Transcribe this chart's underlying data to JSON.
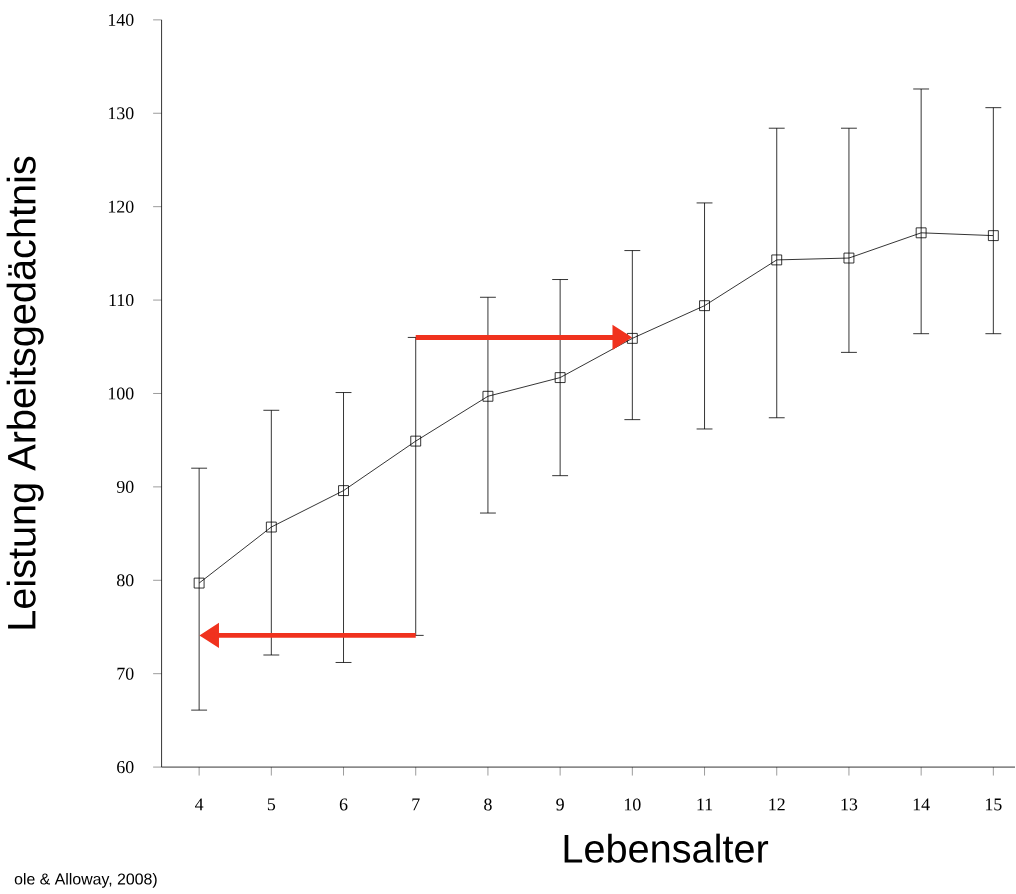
{
  "chart_data": {
    "type": "line",
    "xlabel": "Lebensalter",
    "ylabel": "Leistung Arbeitsgedächtnis",
    "categories": [
      "4",
      "5",
      "6",
      "7",
      "8",
      "9",
      "10",
      "11",
      "12",
      "13",
      "14",
      "15"
    ],
    "values": [
      79.7,
      85.7,
      89.6,
      94.9,
      99.7,
      101.7,
      105.9,
      109.4,
      114.3,
      114.5,
      117.2,
      116.9
    ],
    "errors": [
      [
        66.1,
        92.0
      ],
      [
        72.0,
        98.2
      ],
      [
        71.2,
        100.1
      ],
      [
        74.1,
        106.0
      ],
      [
        87.2,
        110.3
      ],
      [
        91.2,
        112.2
      ],
      [
        97.2,
        115.3
      ],
      [
        96.2,
        120.4
      ],
      [
        97.4,
        128.4
      ],
      [
        104.4,
        128.4
      ],
      [
        106.4,
        132.6
      ],
      [
        106.4,
        130.6
      ]
    ],
    "color": "#000000",
    "marker": "square",
    "line_style": "solid",
    "ylim": [
      60,
      140
    ],
    "yticks": [
      60,
      70,
      80,
      90,
      100,
      110,
      120,
      130,
      140
    ],
    "grid": false,
    "annotations": [
      "ole & Alloway, 2008)"
    ]
  }
}
